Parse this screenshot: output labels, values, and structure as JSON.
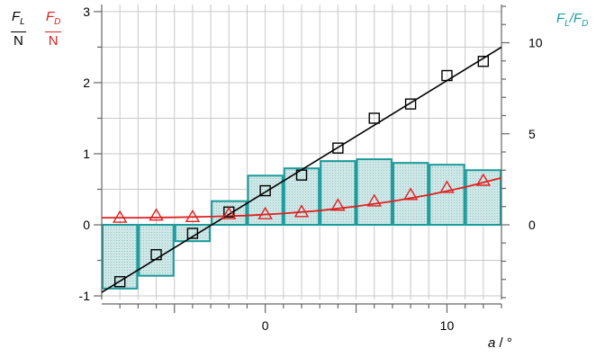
{
  "chart_data": {
    "type": "bar+scatter+line",
    "left_axis": {
      "label_lift": {
        "symbol": "F",
        "subscript": "L",
        "unit": "N"
      },
      "label_drag": {
        "symbol": "F",
        "subscript": "D",
        "unit": "N"
      },
      "ylim": [
        -1.05,
        3.1
      ],
      "ticks": [
        -1,
        0,
        1,
        2,
        3
      ],
      "tick_labels": [
        "-1",
        "0",
        "1",
        "2",
        "3"
      ]
    },
    "right_axis": {
      "label": {
        "symbol1": "F",
        "sub1": "L",
        "sep": "/",
        "symbol2": "F",
        "sub2": "D"
      },
      "ylim": [
        -4.1,
        12.1
      ],
      "ticks": [
        0,
        5,
        10
      ],
      "tick_labels": [
        "0",
        "5",
        "10"
      ]
    },
    "x_axis": {
      "label_symbol": "a",
      "label_unit": " / °",
      "xlim": [
        -9.0,
        13.0
      ],
      "ticks": [
        0,
        10
      ],
      "tick_labels": [
        "0",
        "10"
      ]
    },
    "grid": true,
    "bars_ratio": {
      "x": [
        -8,
        -6,
        -4,
        -2,
        0,
        2,
        4,
        6,
        8,
        10,
        12
      ],
      "values": [
        -3.5,
        -2.8,
        -0.9,
        1.3,
        2.7,
        3.1,
        3.5,
        3.6,
        3.4,
        3.3,
        3.0
      ]
    },
    "lift_points": {
      "x": [
        -8,
        -6,
        -4,
        -2,
        0,
        2,
        4,
        6,
        8,
        10,
        12
      ],
      "values": [
        -0.8,
        -0.42,
        -0.12,
        0.18,
        0.48,
        0.7,
        1.08,
        1.5,
        1.7,
        2.1,
        2.3
      ]
    },
    "lift_fit": {
      "x": [
        -9.0,
        13.0
      ],
      "values": [
        -0.95,
        2.5
      ]
    },
    "drag_points": {
      "x": [
        -8,
        -6,
        -4,
        -2,
        0,
        2,
        4,
        6,
        8,
        10,
        12
      ],
      "values": [
        0.1,
        0.13,
        0.11,
        0.15,
        0.15,
        0.18,
        0.27,
        0.33,
        0.42,
        0.52,
        0.62
      ]
    },
    "drag_fit": {
      "x": [
        -9,
        -7,
        -5,
        -3,
        -1,
        1,
        3,
        5,
        7,
        9,
        11,
        13
      ],
      "values": [
        0.1,
        0.1,
        0.105,
        0.115,
        0.13,
        0.16,
        0.2,
        0.26,
        0.33,
        0.42,
        0.53,
        0.66
      ]
    },
    "colors": {
      "lift": "#000000",
      "drag": "#e02020",
      "ratio": "#1a9a9a",
      "ratio_fill": "#cfe7e7",
      "grid": "#c8c8c8",
      "axis": "#666666"
    }
  }
}
